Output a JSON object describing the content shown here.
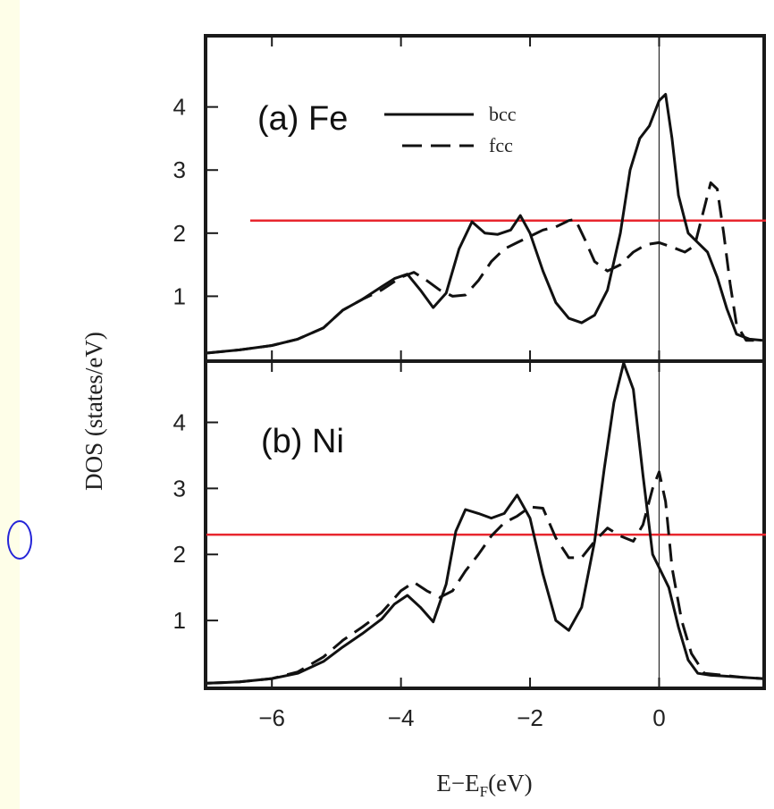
{
  "chart_data": {
    "type": "line",
    "ylabel": "DOS (states/eV)",
    "xlabel_main": "E−E",
    "xlabel_sub": "F",
    "xlabel_unit": "(eV)",
    "xlim": [
      -7,
      1.6
    ],
    "x_ticks": [
      -6,
      -4,
      -2,
      0
    ],
    "x_tick_labels": [
      "−6",
      "−4",
      "−2",
      "0"
    ],
    "fermi_level": 0,
    "legend": [
      {
        "label": "bcc",
        "style": "solid"
      },
      {
        "label": "fcc",
        "style": "dashed"
      }
    ],
    "panels": [
      {
        "label": "(a) Fe",
        "ylim": [
          0,
          5.1
        ],
        "y_ticks": [
          1,
          2,
          3,
          4
        ],
        "reference_line": 2.2,
        "reference_color": "#e8262e",
        "series": [
          {
            "name": "bcc",
            "style": "solid",
            "x": [
              -7.0,
              -6.5,
              -6.0,
              -5.6,
              -5.2,
              -4.9,
              -4.6,
              -4.3,
              -4.1,
              -3.9,
              -3.7,
              -3.5,
              -3.3,
              -3.1,
              -2.9,
              -2.7,
              -2.5,
              -2.3,
              -2.15,
              -2.0,
              -1.8,
              -1.6,
              -1.4,
              -1.2,
              -1.0,
              -0.8,
              -0.6,
              -0.45,
              -0.3,
              -0.15,
              0.0,
              0.1,
              0.2,
              0.3,
              0.45,
              0.6,
              0.75,
              0.9,
              1.05,
              1.2,
              1.4,
              1.6
            ],
            "y": [
              0.1,
              0.15,
              0.22,
              0.32,
              0.5,
              0.78,
              0.95,
              1.15,
              1.28,
              1.35,
              1.1,
              0.82,
              1.05,
              1.75,
              2.18,
              2.0,
              1.98,
              2.05,
              2.28,
              2.0,
              1.4,
              0.9,
              0.65,
              0.58,
              0.7,
              1.1,
              2.0,
              3.0,
              3.5,
              3.7,
              4.1,
              4.2,
              3.5,
              2.6,
              2.0,
              1.85,
              1.7,
              1.3,
              0.8,
              0.4,
              0.32,
              0.3
            ]
          },
          {
            "name": "fcc",
            "style": "dashed",
            "x": [
              -7.0,
              -6.5,
              -6.0,
              -5.6,
              -5.2,
              -4.9,
              -4.6,
              -4.3,
              -4.0,
              -3.8,
              -3.6,
              -3.4,
              -3.2,
              -3.0,
              -2.8,
              -2.6,
              -2.4,
              -2.2,
              -2.0,
              -1.8,
              -1.6,
              -1.4,
              -1.3,
              -1.15,
              -1.0,
              -0.8,
              -0.6,
              -0.4,
              -0.2,
              0.0,
              0.2,
              0.4,
              0.55,
              0.7,
              0.8,
              0.9,
              1.0,
              1.1,
              1.2,
              1.35,
              1.6
            ],
            "y": [
              0.1,
              0.15,
              0.22,
              0.32,
              0.5,
              0.78,
              0.95,
              1.1,
              1.3,
              1.38,
              1.25,
              1.1,
              1.0,
              1.02,
              1.25,
              1.55,
              1.75,
              1.85,
              1.95,
              2.05,
              2.1,
              2.2,
              2.22,
              1.9,
              1.55,
              1.4,
              1.5,
              1.7,
              1.82,
              1.85,
              1.78,
              1.7,
              1.8,
              2.4,
              2.8,
              2.7,
              2.0,
              1.2,
              0.55,
              0.3,
              0.3
            ]
          }
        ]
      },
      {
        "label": "(b) Ni",
        "ylim": [
          0,
          4.9
        ],
        "y_ticks": [
          1,
          2,
          3,
          4
        ],
        "reference_line": 2.3,
        "reference_color": "#e8262e",
        "series": [
          {
            "name": "bcc",
            "style": "solid",
            "x": [
              -7.0,
              -6.5,
              -6.0,
              -5.6,
              -5.2,
              -4.9,
              -4.6,
              -4.3,
              -4.1,
              -3.9,
              -3.7,
              -3.5,
              -3.3,
              -3.15,
              -3.0,
              -2.8,
              -2.6,
              -2.4,
              -2.2,
              -2.0,
              -1.8,
              -1.6,
              -1.4,
              -1.2,
              -1.0,
              -0.85,
              -0.7,
              -0.55,
              -0.4,
              -0.25,
              -0.1,
              0.0,
              0.15,
              0.3,
              0.45,
              0.6,
              0.8,
              1.0,
              1.3,
              1.6
            ],
            "y": [
              0.05,
              0.07,
              0.12,
              0.2,
              0.38,
              0.6,
              0.8,
              1.02,
              1.25,
              1.38,
              1.2,
              0.98,
              1.55,
              2.35,
              2.68,
              2.62,
              2.55,
              2.62,
              2.9,
              2.55,
              1.7,
              1.0,
              0.85,
              1.2,
              2.2,
              3.3,
              4.3,
              4.9,
              4.5,
              3.2,
              2.0,
              1.8,
              1.5,
              0.9,
              0.4,
              0.2,
              0.17,
              0.16,
              0.14,
              0.12
            ]
          },
          {
            "name": "fcc",
            "style": "dashed",
            "x": [
              -7.0,
              -6.5,
              -6.0,
              -5.6,
              -5.2,
              -4.9,
              -4.6,
              -4.3,
              -4.0,
              -3.8,
              -3.6,
              -3.4,
              -3.2,
              -3.0,
              -2.8,
              -2.6,
              -2.4,
              -2.2,
              -2.0,
              -1.8,
              -1.6,
              -1.4,
              -1.2,
              -1.0,
              -0.8,
              -0.6,
              -0.4,
              -0.25,
              -0.1,
              0.0,
              0.1,
              0.2,
              0.35,
              0.5,
              0.7,
              1.0,
              1.3,
              1.6
            ],
            "y": [
              0.05,
              0.07,
              0.12,
              0.22,
              0.45,
              0.7,
              0.9,
              1.12,
              1.45,
              1.58,
              1.45,
              1.35,
              1.45,
              1.75,
              2.0,
              2.28,
              2.48,
              2.58,
              2.72,
              2.7,
              2.25,
              1.95,
              1.95,
              2.2,
              2.4,
              2.28,
              2.2,
              2.45,
              3.0,
              3.25,
              2.8,
              1.8,
              1.0,
              0.5,
              0.2,
              0.17,
              0.14,
              0.12
            ]
          }
        ]
      }
    ]
  }
}
